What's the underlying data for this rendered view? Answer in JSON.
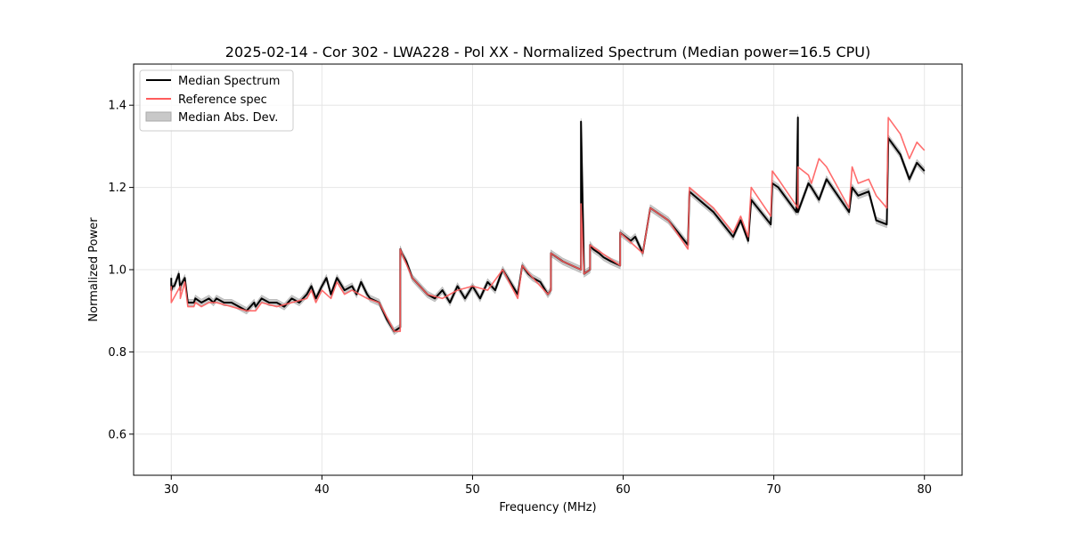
{
  "chart_data": {
    "type": "line",
    "title": "2025-02-14 - Cor 302 - LWA228 - Pol XX - Normalized Spectrum (Median power=16.5 CPU)",
    "xlabel": "Frequency (MHz)",
    "ylabel": "Normalized Power",
    "xlim": [
      27.5,
      82.5
    ],
    "ylim": [
      0.5,
      1.5
    ],
    "xticks": [
      30,
      40,
      50,
      60,
      70,
      80
    ],
    "yticks": [
      0.6,
      0.8,
      1.0,
      1.2,
      1.4
    ],
    "xtick_labels": [
      "30",
      "40",
      "50",
      "60",
      "70",
      "80"
    ],
    "ytick_labels": [
      "0.6",
      "0.8",
      "1.0",
      "1.2",
      "1.4"
    ],
    "grid": true,
    "legend_position": "top-left",
    "legend": [
      {
        "name": "Median Spectrum",
        "style": "line",
        "color": "#000000"
      },
      {
        "name": "Reference spec",
        "style": "line",
        "color": "#ff5c5c"
      },
      {
        "name": "Median Abs. Dev.",
        "style": "patch",
        "color": "#c8c8c8"
      }
    ],
    "series": [
      {
        "name": "Median Spectrum",
        "color": "#000000",
        "mad_band": 0.008,
        "x": [
          30.0,
          30.0,
          30.1,
          30.2,
          30.5,
          30.6,
          30.6,
          30.9,
          31.0,
          31.1,
          31.5,
          31.6,
          32.0,
          32.5,
          32.8,
          33.0,
          33.5,
          34.0,
          34.5,
          35.0,
          35.5,
          35.6,
          36.0,
          36.5,
          37.0,
          37.5,
          38.0,
          38.5,
          39.0,
          39.3,
          39.6,
          40.0,
          40.3,
          40.6,
          41.0,
          41.5,
          42.0,
          42.3,
          42.6,
          43.0,
          43.2,
          43.8,
          44.3,
          44.8,
          45.2,
          45.2,
          45.3,
          45.6,
          46.0,
          46.5,
          47.0,
          47.5,
          48.0,
          48.5,
          49.0,
          49.5,
          50.0,
          50.5,
          51.0,
          51.5,
          52.0,
          52.5,
          53.0,
          53.3,
          53.7,
          54.0,
          54.5,
          55.0,
          55.2,
          55.2,
          56.0,
          57.2,
          57.2,
          57.4,
          57.4,
          57.8,
          57.8,
          58.0,
          58.4,
          58.7,
          59.2,
          59.8,
          59.8,
          60.5,
          60.8,
          61.3,
          61.8,
          63.0,
          64.3,
          64.4,
          66.0,
          67.3,
          67.8,
          68.3,
          68.5,
          69.8,
          69.9,
          70.3,
          71.5,
          71.6,
          71.6,
          72.3,
          72.5,
          73.0,
          73.5,
          75.0,
          75.2,
          75.6,
          76.3,
          76.8,
          77.5,
          77.6,
          78.4,
          79.0,
          79.5,
          80.0
        ],
        "y": [
          0.98,
          0.95,
          0.96,
          0.96,
          0.99,
          0.95,
          0.96,
          0.98,
          0.95,
          0.92,
          0.92,
          0.93,
          0.92,
          0.93,
          0.92,
          0.93,
          0.92,
          0.92,
          0.91,
          0.9,
          0.92,
          0.91,
          0.93,
          0.92,
          0.92,
          0.91,
          0.93,
          0.92,
          0.94,
          0.96,
          0.93,
          0.96,
          0.98,
          0.94,
          0.98,
          0.95,
          0.96,
          0.94,
          0.97,
          0.94,
          0.93,
          0.92,
          0.88,
          0.85,
          0.86,
          1.05,
          1.04,
          1.02,
          0.98,
          0.96,
          0.94,
          0.93,
          0.95,
          0.92,
          0.96,
          0.93,
          0.96,
          0.93,
          0.97,
          0.95,
          1.0,
          0.97,
          0.94,
          1.01,
          0.99,
          0.98,
          0.97,
          0.94,
          0.95,
          1.04,
          1.02,
          1.0,
          1.36,
          1.0,
          0.99,
          1.0,
          1.06,
          1.05,
          1.04,
          1.03,
          1.02,
          1.01,
          1.09,
          1.07,
          1.08,
          1.04,
          1.15,
          1.12,
          1.06,
          1.19,
          1.14,
          1.08,
          1.12,
          1.07,
          1.17,
          1.11,
          1.21,
          1.2,
          1.14,
          1.37,
          1.14,
          1.21,
          1.2,
          1.17,
          1.22,
          1.14,
          1.2,
          1.18,
          1.19,
          1.12,
          1.11,
          1.32,
          1.28,
          1.22,
          1.26,
          1.24
        ]
      },
      {
        "name": "Reference spec",
        "color": "#ff5c5c",
        "x": [
          30.0,
          30.0,
          30.6,
          30.6,
          30.9,
          31.1,
          31.5,
          31.6,
          32.0,
          32.5,
          33.0,
          34.0,
          35.0,
          35.6,
          36.0,
          37.0,
          38.0,
          39.0,
          39.3,
          39.6,
          40.0,
          40.6,
          41.0,
          41.5,
          42.0,
          43.0,
          43.8,
          44.8,
          45.2,
          45.2,
          45.3,
          46.0,
          47.0,
          48.0,
          49.0,
          50.0,
          51.0,
          52.0,
          53.0,
          53.3,
          54.0,
          55.0,
          55.2,
          55.2,
          56.0,
          57.2,
          57.2,
          57.4,
          57.8,
          57.8,
          59.8,
          59.8,
          61.3,
          61.8,
          63.0,
          64.3,
          64.4,
          66.0,
          67.3,
          67.8,
          68.3,
          68.5,
          69.8,
          69.9,
          70.3,
          71.6,
          71.6,
          72.3,
          72.5,
          73.0,
          73.5,
          75.0,
          75.2,
          75.6,
          76.3,
          76.8,
          77.5,
          77.6,
          78.4,
          79.0,
          79.5,
          80.0
        ],
        "y": [
          0.96,
          0.92,
          0.96,
          0.93,
          0.97,
          0.91,
          0.91,
          0.92,
          0.91,
          0.92,
          0.92,
          0.91,
          0.9,
          0.9,
          0.92,
          0.91,
          0.92,
          0.93,
          0.95,
          0.92,
          0.95,
          0.93,
          0.97,
          0.94,
          0.95,
          0.93,
          0.92,
          0.85,
          0.85,
          1.05,
          1.04,
          0.98,
          0.94,
          0.93,
          0.95,
          0.96,
          0.95,
          1.0,
          0.93,
          1.01,
          0.98,
          0.94,
          0.95,
          1.04,
          1.02,
          1.0,
          1.16,
          0.99,
          1.0,
          1.06,
          1.01,
          1.09,
          1.04,
          1.15,
          1.12,
          1.05,
          1.2,
          1.15,
          1.09,
          1.13,
          1.08,
          1.2,
          1.13,
          1.24,
          1.22,
          1.15,
          1.25,
          1.23,
          1.21,
          1.27,
          1.25,
          1.15,
          1.25,
          1.21,
          1.22,
          1.18,
          1.15,
          1.37,
          1.33,
          1.27,
          1.31,
          1.29
        ]
      }
    ]
  }
}
